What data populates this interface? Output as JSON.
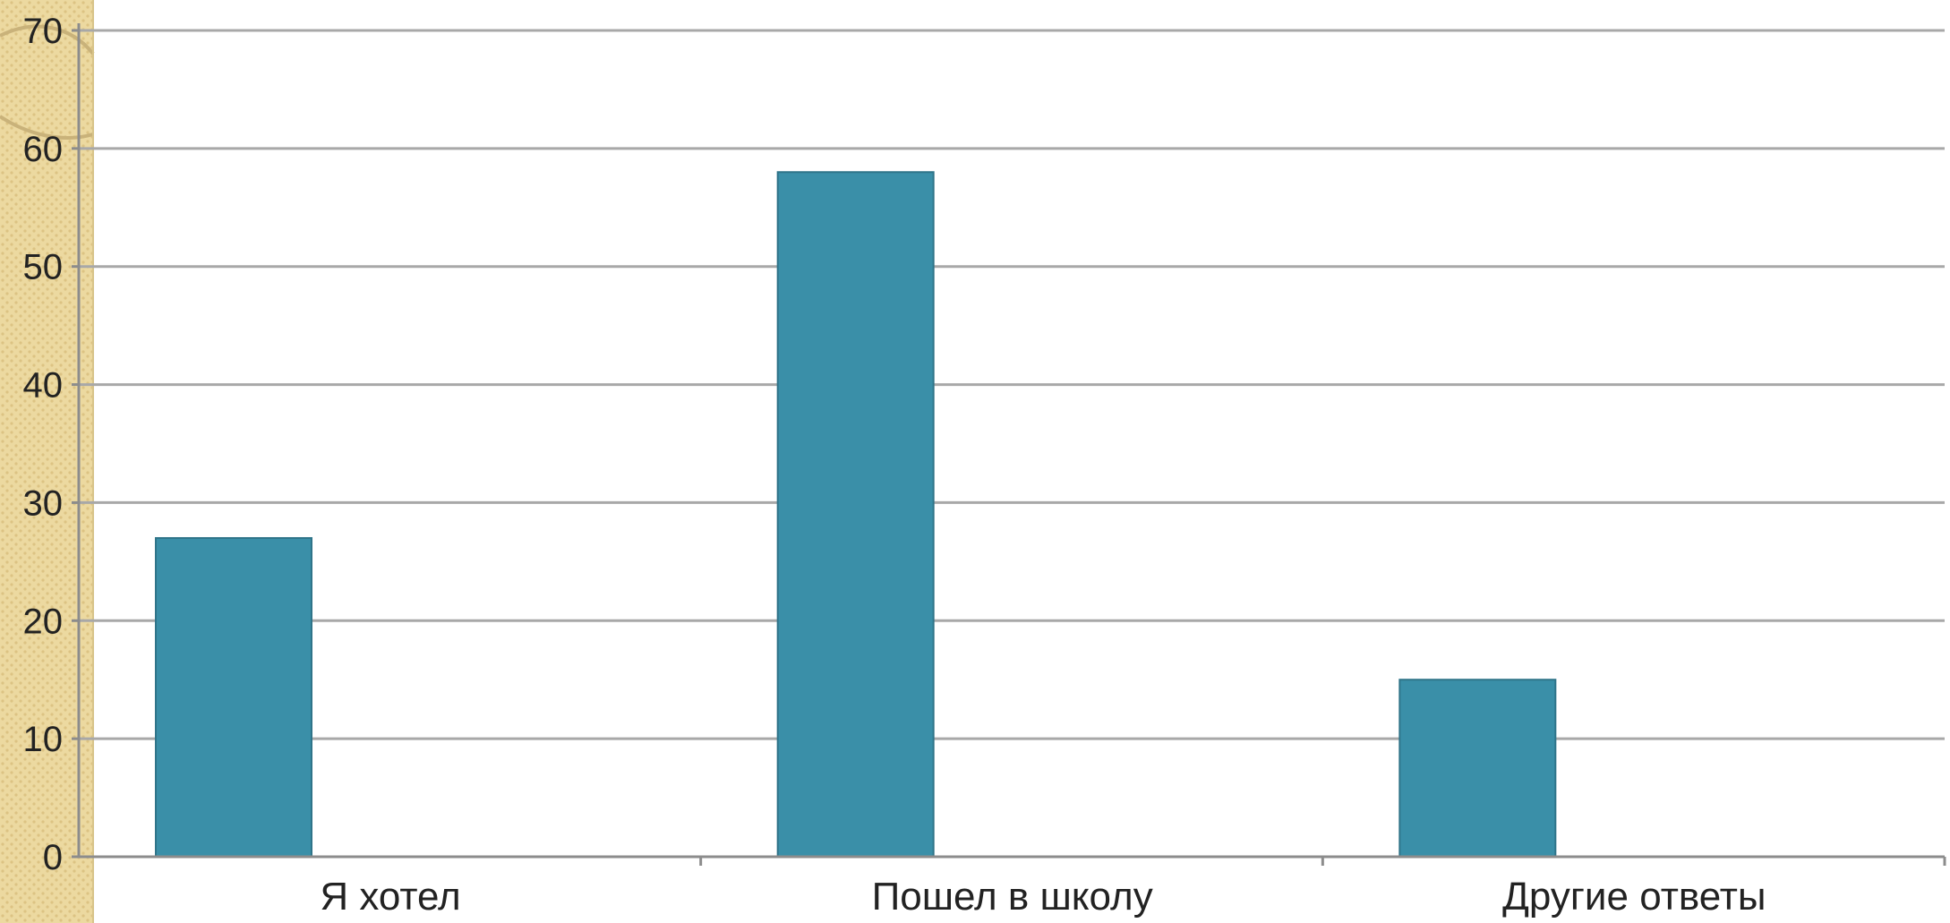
{
  "chart_data": {
    "type": "bar",
    "categories": [
      "Я хотел",
      "Пошел в школу",
      "Другие ответы"
    ],
    "series": [
      {
        "values": [
          27,
          58,
          15
        ]
      }
    ],
    "ylim": [
      0,
      70
    ],
    "yticks": [
      0,
      10,
      20,
      30,
      40,
      50,
      60,
      70
    ],
    "grid": true,
    "legend": "none"
  },
  "colors": {
    "bar": "#3a8fa8",
    "bar_edge": "#2f7489",
    "side_panel": "#ecd9a0",
    "side_panel_dots": "#dcc383"
  },
  "decor": {
    "side_panel": "patterned-paper-strip"
  }
}
